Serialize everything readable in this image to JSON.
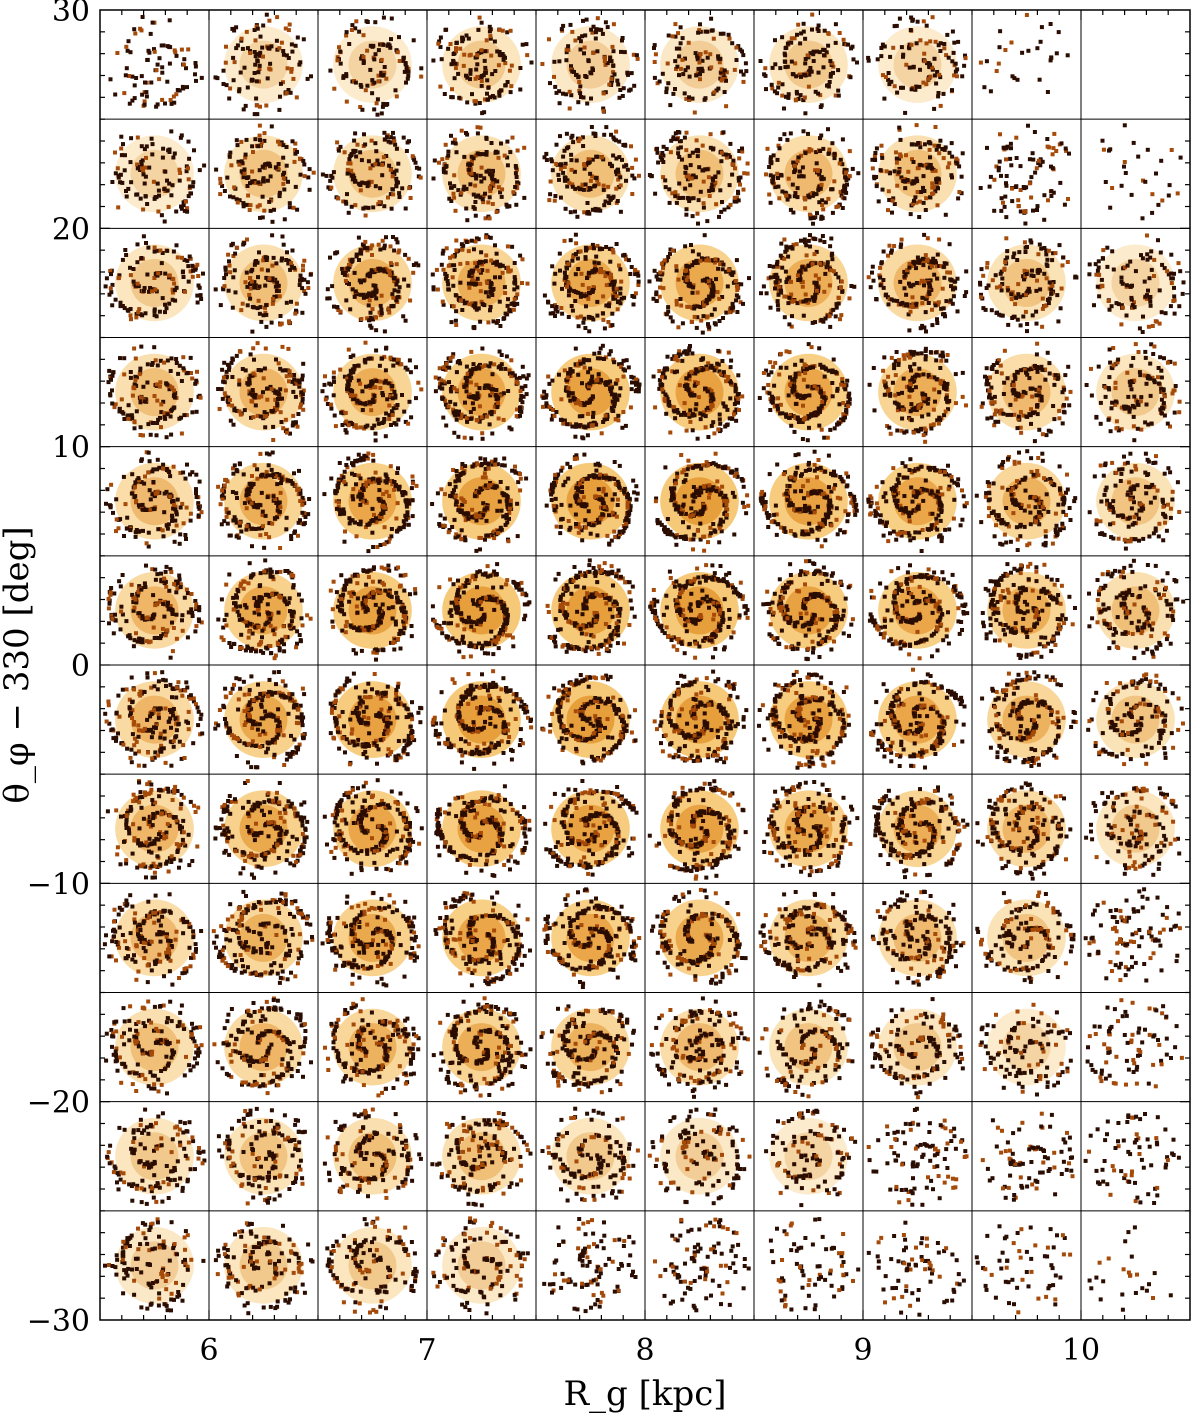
{
  "chart_data": {
    "type": "grid of spiral-pattern density panels",
    "xlabel": "R_g [kpc]",
    "ylabel": "θ_φ − 330 [deg]",
    "xlim": [
      5.5,
      10.5
    ],
    "ylim": [
      -30,
      30
    ],
    "x_ticks": [
      "6",
      "7",
      "8",
      "9",
      "10"
    ],
    "y_ticks": [
      "30",
      "20",
      "10",
      "0",
      "−10",
      "−20",
      "−30"
    ],
    "panel_grid": {
      "columns": 10,
      "rows": 12,
      "column_width_kpc": 0.5,
      "row_height_deg": 5
    },
    "colormap": [
      "#ffffff",
      "#f5c060",
      "#e08a1e",
      "#a54a08",
      "#2a0d00"
    ],
    "panels": [
      [
        0.25,
        0.35,
        0.35,
        0.45,
        0.4,
        0.4,
        0.45,
        0.35,
        0.03,
        0
      ],
      [
        0.35,
        0.5,
        0.5,
        0.55,
        0.55,
        0.55,
        0.6,
        0.55,
        0.3,
        0.04
      ],
      [
        0.45,
        0.55,
        0.7,
        0.75,
        0.8,
        0.8,
        0.75,
        0.65,
        0.5,
        0.35
      ],
      [
        0.55,
        0.65,
        0.75,
        0.85,
        0.9,
        0.9,
        0.85,
        0.75,
        0.6,
        0.45
      ],
      [
        0.6,
        0.75,
        0.85,
        0.9,
        0.95,
        0.95,
        0.9,
        0.85,
        0.7,
        0.5
      ],
      [
        0.65,
        0.8,
        0.9,
        0.95,
        0.95,
        0.95,
        0.9,
        0.85,
        0.75,
        0.55
      ],
      [
        0.65,
        0.8,
        0.9,
        0.95,
        0.95,
        0.95,
        0.9,
        0.85,
        0.7,
        0.5
      ],
      [
        0.65,
        0.8,
        0.85,
        0.9,
        0.9,
        0.9,
        0.8,
        0.75,
        0.65,
        0.45
      ],
      [
        0.6,
        0.7,
        0.8,
        0.85,
        0.85,
        0.8,
        0.7,
        0.6,
        0.5,
        0.3
      ],
      [
        0.55,
        0.65,
        0.7,
        0.75,
        0.7,
        0.6,
        0.5,
        0.45,
        0.35,
        0.25
      ],
      [
        0.45,
        0.5,
        0.55,
        0.55,
        0.45,
        0.4,
        0.35,
        0.3,
        0.25,
        0.2
      ],
      [
        0.4,
        0.45,
        0.45,
        0.4,
        0.3,
        0.3,
        0.2,
        0.2,
        0.15,
        0.02
      ]
    ]
  }
}
